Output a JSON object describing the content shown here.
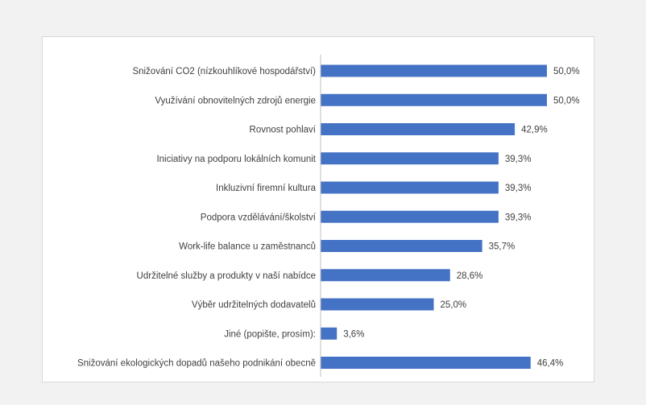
{
  "chart_data": {
    "type": "bar",
    "orientation": "horizontal",
    "categories": [
      "Snižování CO2 (nízkouhlíkové hospodářství)",
      "Využívání obnovitelných zdrojů energie",
      "Rovnost pohlaví",
      "Iniciativy na podporu lokálních komunit",
      "Inkluzivní firemní kultura",
      "Podpora vzdělávání/školství",
      "Work-life balance u zaměstnanců",
      "Udržitelné služby a produkty v naší nabídce",
      "Výběr udržitelných dodavatelů",
      "Jiné (popište, prosím):",
      "Snižování ekologických dopadů našeho podnikání obecně"
    ],
    "values": [
      50.0,
      50.0,
      42.9,
      39.3,
      39.3,
      39.3,
      35.7,
      28.6,
      25.0,
      3.6,
      46.4
    ],
    "value_labels": [
      "50,0%",
      "50,0%",
      "42,9%",
      "39,3%",
      "39,3%",
      "39,3%",
      "35,7%",
      "28,6%",
      "25,0%",
      "3,6%",
      "46,4%"
    ],
    "xlim": [
      0,
      50
    ],
    "bar_color": "#4472c4",
    "axis_color": "#bfbfbf",
    "grid": false,
    "legend": "none"
  }
}
